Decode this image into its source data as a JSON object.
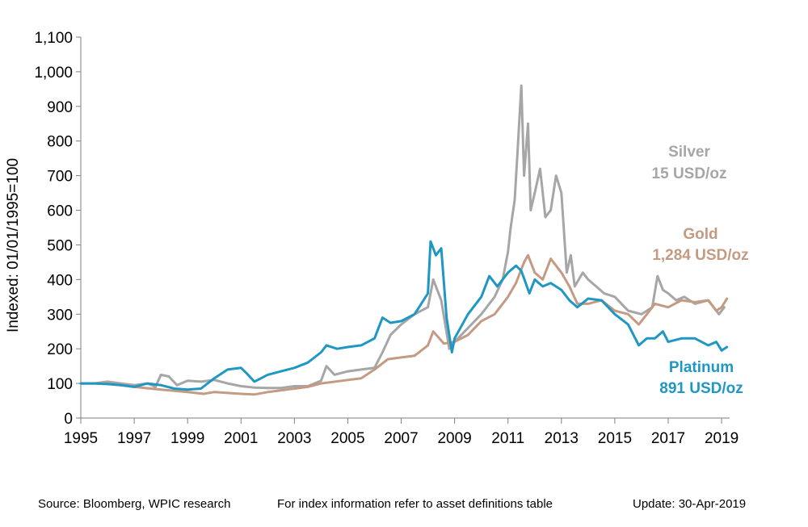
{
  "chart_data": {
    "type": "line",
    "ylabel": "Indexed: 01/01/1995=100",
    "xlim": [
      1995,
      2019.3
    ],
    "ylim": [
      0,
      1100
    ],
    "x_ticks": [
      "1995",
      "1997",
      "1999",
      "2001",
      "2003",
      "2005",
      "2007",
      "2009",
      "2011",
      "2013",
      "2015",
      "2017",
      "2019"
    ],
    "y_ticks": [
      "0",
      "100",
      "200",
      "300",
      "400",
      "500",
      "600",
      "700",
      "800",
      "900",
      "1,000",
      "1,100"
    ],
    "grid": false,
    "colors": {
      "Silver": "#a6a6a6",
      "Gold": "#c49a82",
      "Platinum": "#1f97c4"
    },
    "series": [
      {
        "name": "Silver",
        "x": [
          1995,
          1995.5,
          1996,
          1996.5,
          1997,
          1997.5,
          1997.8,
          1998,
          1998.3,
          1998.6,
          1999,
          1999.5,
          2000,
          2000.5,
          2001,
          2001.5,
          2002,
          2002.5,
          2003,
          2003.5,
          2004,
          2004.2,
          2004.5,
          2005,
          2005.5,
          2006,
          2006.3,
          2006.6,
          2007,
          2007.5,
          2008,
          2008.2,
          2008.5,
          2008.8,
          2009,
          2009.5,
          2010,
          2010.5,
          2010.8,
          2011,
          2011.1,
          2011.25,
          2011.35,
          2011.5,
          2011.6,
          2011.75,
          2011.85,
          2012,
          2012.2,
          2012.4,
          2012.6,
          2012.8,
          2013,
          2013.2,
          2013.35,
          2013.5,
          2013.8,
          2014,
          2014.3,
          2014.6,
          2015,
          2015.5,
          2016,
          2016.4,
          2016.6,
          2016.8,
          2017,
          2017.3,
          2017.6,
          2018,
          2018.5,
          2018.9,
          2019.1
        ],
        "values": [
          100,
          100,
          105,
          100,
          95,
          100,
          90,
          125,
          120,
          95,
          108,
          105,
          110,
          100,
          92,
          88,
          87,
          87,
          92,
          92,
          108,
          150,
          125,
          135,
          140,
          145,
          190,
          240,
          270,
          300,
          320,
          400,
          340,
          200,
          220,
          260,
          300,
          350,
          400,
          480,
          550,
          630,
          760,
          960,
          700,
          850,
          600,
          650,
          720,
          580,
          600,
          700,
          650,
          420,
          470,
          380,
          420,
          400,
          380,
          360,
          350,
          310,
          300,
          320,
          410,
          370,
          360,
          340,
          350,
          330,
          340,
          300,
          320
        ]
      },
      {
        "name": "Gold",
        "x": [
          1995,
          1996,
          1997,
          1998,
          1999,
          1999.6,
          2000,
          2001,
          2001.5,
          2002,
          2003,
          2003.5,
          2004,
          2005,
          2005.5,
          2006,
          2006.5,
          2007,
          2007.5,
          2008,
          2008.2,
          2008.6,
          2009,
          2009.5,
          2010,
          2010.5,
          2011,
          2011.3,
          2011.6,
          2011.75,
          2012,
          2012.3,
          2012.6,
          2013,
          2013.3,
          2013.6,
          2014,
          2014.5,
          2015,
          2015.5,
          2015.9,
          2016.2,
          2016.5,
          2017,
          2017.5,
          2018,
          2018.5,
          2018.8,
          2019,
          2019.2
        ],
        "values": [
          100,
          100,
          90,
          82,
          75,
          70,
          75,
          70,
          68,
          75,
          85,
          90,
          100,
          110,
          115,
          140,
          170,
          175,
          180,
          210,
          250,
          215,
          220,
          240,
          280,
          300,
          350,
          390,
          450,
          470,
          420,
          400,
          460,
          420,
          380,
          330,
          330,
          340,
          310,
          300,
          270,
          300,
          330,
          320,
          340,
          335,
          340,
          310,
          320,
          345
        ]
      },
      {
        "name": "Platinum",
        "x": [
          1995,
          1995.5,
          1996,
          1996.5,
          1997,
          1997.5,
          1998,
          1998.5,
          1999,
          1999.5,
          2000,
          2000.5,
          2001,
          2001.2,
          2001.5,
          2002,
          2002.5,
          2003,
          2003.5,
          2004,
          2004.2,
          2004.6,
          2005,
          2005.5,
          2006,
          2006.3,
          2006.6,
          2007,
          2007.5,
          2008,
          2008.1,
          2008.3,
          2008.5,
          2008.7,
          2008.9,
          2009,
          2009.5,
          2010,
          2010.3,
          2010.6,
          2011,
          2011.3,
          2011.5,
          2011.8,
          2012,
          2012.3,
          2012.6,
          2013,
          2013.3,
          2013.6,
          2014,
          2014.5,
          2015,
          2015.5,
          2015.9,
          2016.2,
          2016.5,
          2016.8,
          2017,
          2017.5,
          2018,
          2018.5,
          2018.8,
          2019,
          2019.2
        ],
        "values": [
          100,
          100,
          98,
          95,
          90,
          100,
          95,
          85,
          82,
          85,
          115,
          140,
          145,
          130,
          105,
          125,
          135,
          145,
          160,
          190,
          210,
          200,
          205,
          210,
          230,
          290,
          275,
          280,
          300,
          360,
          510,
          470,
          490,
          290,
          190,
          230,
          300,
          350,
          410,
          380,
          420,
          440,
          425,
          360,
          400,
          380,
          390,
          370,
          340,
          320,
          345,
          340,
          300,
          270,
          210,
          230,
          230,
          250,
          220,
          230,
          230,
          210,
          220,
          195,
          205
        ]
      }
    ],
    "annotations": [
      {
        "series": "Silver",
        "line1": "Silver",
        "line2": "15 USD/oz"
      },
      {
        "series": "Gold",
        "line1": "Gold",
        "line2": "1,284 USD/oz"
      },
      {
        "series": "Platinum",
        "line1": "Platinum",
        "line2": "891 USD/oz"
      }
    ]
  },
  "footer": {
    "source": "Source: Bloomberg, WPIC research",
    "index_note": "For index information refer to asset definitions table",
    "update": "Update: 30-Apr-2019"
  }
}
